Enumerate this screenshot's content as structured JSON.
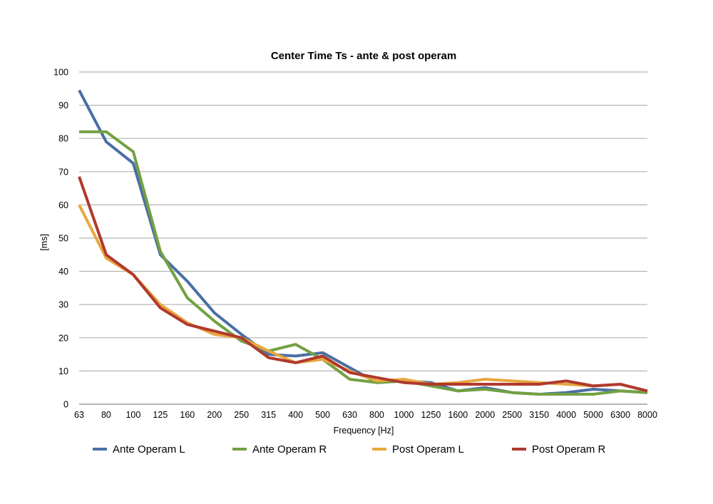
{
  "chart_data": {
    "type": "line",
    "title": "Center Time Ts - ante & post operam",
    "xlabel": "Frequency [Hz]",
    "ylabel": "[ms]",
    "ylim": [
      0,
      100
    ],
    "yticks": [
      0,
      10,
      20,
      30,
      40,
      50,
      60,
      70,
      80,
      90,
      100
    ],
    "grid": true,
    "legend_position": "bottom",
    "categories": [
      "63",
      "80",
      "100",
      "125",
      "160",
      "200",
      "250",
      "315",
      "400",
      "500",
      "630",
      "800",
      "1000",
      "1250",
      "1600",
      "2000",
      "2500",
      "3150",
      "4000",
      "5000",
      "6300",
      "8000"
    ],
    "series": [
      {
        "name": "Ante Operam L",
        "color": "#4a6fa5",
        "values": [
          94.5,
          79,
          72.5,
          45,
          37,
          27.5,
          21,
          15,
          14.5,
          15.5,
          11,
          6.5,
          7,
          6.5,
          4,
          5,
          3.5,
          3,
          3.5,
          4.5,
          4,
          3.5
        ]
      },
      {
        "name": "Ante Operam R",
        "color": "#72a142",
        "values": [
          82,
          82,
          76,
          46,
          32,
          25,
          19,
          16,
          18,
          13.5,
          7.5,
          6.5,
          7,
          5.5,
          4,
          4.5,
          3.5,
          3,
          3,
          3,
          4,
          3.5
        ]
      },
      {
        "name": "Post Operam L",
        "color": "#e8a73e",
        "values": [
          60,
          44,
          39,
          30,
          24.5,
          21,
          20,
          16,
          12.5,
          13.5,
          10,
          7,
          7.5,
          6,
          6.5,
          7.5,
          7,
          6.5,
          6,
          5.5,
          6,
          4
        ]
      },
      {
        "name": "Post Operam R",
        "color": "#b0392e",
        "values": [
          68.5,
          45,
          39,
          29,
          24,
          22,
          20,
          14,
          12.5,
          14.5,
          9.5,
          8,
          6.5,
          6,
          6,
          6,
          6,
          6,
          7,
          5.5,
          6,
          4
        ]
      }
    ]
  }
}
